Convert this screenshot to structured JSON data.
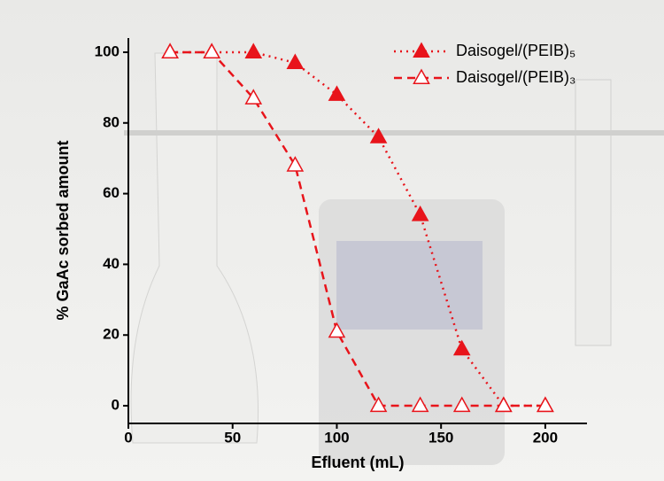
{
  "chart_data": {
    "type": "line",
    "x_label": "Efluent (mL)",
    "y_label": "% GaAc sorbed amount",
    "xlim": [
      0,
      220
    ],
    "xticks": [
      0,
      50,
      100,
      150,
      200
    ],
    "ylim": [
      -5,
      104
    ],
    "yticks": [
      0,
      20,
      40,
      60,
      80,
      100
    ],
    "legend": "upper right",
    "series": [
      {
        "name": "Daisogel/(PEIB)₅",
        "color": "#e8141b",
        "marker": "filled-triangle",
        "dash": "dotted",
        "x": [
          20,
          40,
          60,
          80,
          100,
          120,
          140,
          160,
          180,
          200
        ],
        "values": [
          100,
          100,
          100,
          97,
          88,
          76,
          54,
          16,
          0,
          0
        ]
      },
      {
        "name": "Daisogel/(PEIB)₃",
        "color": "#e8141b",
        "marker": "open-triangle",
        "dash": "dashed",
        "x": [
          20,
          40,
          60,
          80,
          100,
          120,
          140,
          160,
          180,
          200
        ],
        "values": [
          100,
          100,
          87,
          68,
          21,
          0,
          0,
          0,
          0,
          0
        ]
      }
    ]
  }
}
